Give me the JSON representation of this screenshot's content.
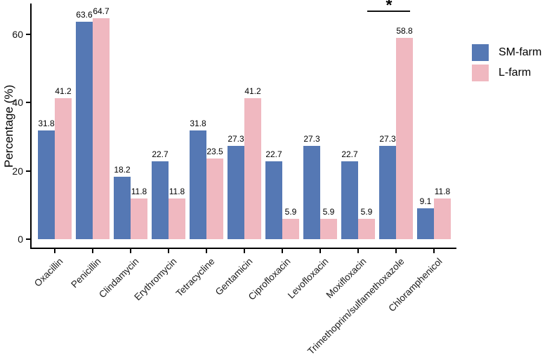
{
  "chart_data": {
    "type": "bar",
    "title": "",
    "xlabel": "",
    "ylabel": "Percentage (%)",
    "categories": [
      "Oxacillin",
      "Penicillin",
      "Clindamycin",
      "Erythromycin",
      "Tetracycline",
      "Gentamicin",
      "Ciprofloxacin",
      "Levofloxacin",
      "Moxifloxacin",
      "Trimethoprim/sulfamethoxazole",
      "Chloramphenicol"
    ],
    "series": [
      {
        "name": "SM-farm",
        "color": "#5578b4",
        "values": [
          31.8,
          63.6,
          18.2,
          22.7,
          31.8,
          27.3,
          22.7,
          27.3,
          22.7,
          27.3,
          9.1
        ]
      },
      {
        "name": "L-farm",
        "color": "#f0b8c0",
        "values": [
          41.2,
          64.7,
          11.8,
          11.8,
          23.5,
          41.2,
          5.9,
          5.9,
          5.9,
          58.8,
          11.8
        ]
      }
    ],
    "yticks": [
      0,
      20,
      40,
      60
    ],
    "ylim": [
      0,
      70
    ],
    "grid": false,
    "legend_position": "right",
    "bar_value_labels": true,
    "annotation": {
      "symbol": "*",
      "category": "Trimethoprim/sulfamethoxazole",
      "type": "significance-bar"
    }
  }
}
